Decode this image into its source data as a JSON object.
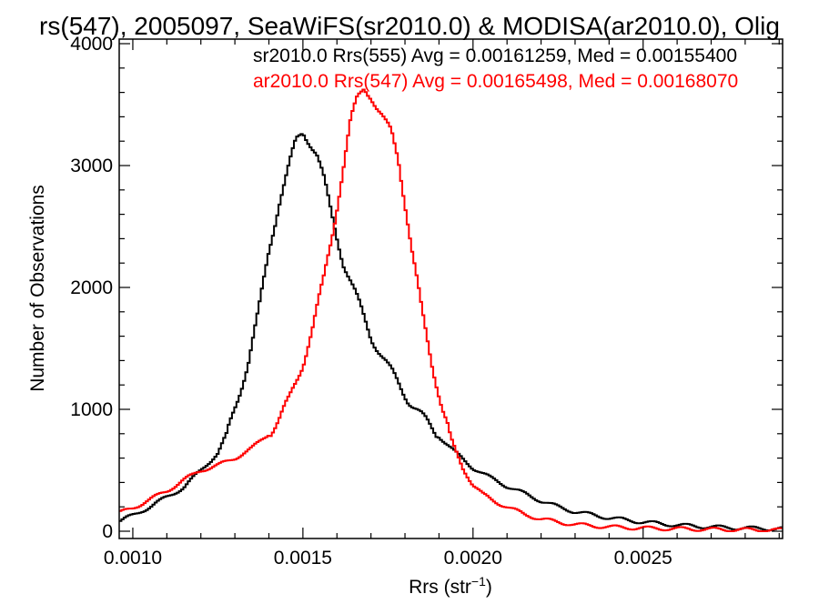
{
  "chart_data": {
    "type": "line",
    "title": "rs(547), 2005097, SeaWiFS(sr2010.0) & MODISA(ar2010.0), Olig",
    "xlabel_main": "Rrs (str",
    "xlabel_exp": "−1",
    "xlabel_close": ")",
    "ylabel": "Number of Observations",
    "xlim": [
      0.00096,
      0.00291
    ],
    "ylim": [
      0,
      4000
    ],
    "x_ticks": [
      {
        "value": 0.001,
        "label": "0.0010"
      },
      {
        "value": 0.0015,
        "label": "0.0015"
      },
      {
        "value": 0.002,
        "label": "0.0020"
      },
      {
        "value": 0.0025,
        "label": "0.0025"
      }
    ],
    "y_ticks": [
      {
        "value": 0,
        "label": "0"
      },
      {
        "value": 1000,
        "label": "1000"
      },
      {
        "value": 2000,
        "label": "2000"
      },
      {
        "value": 3000,
        "label": "3000"
      },
      {
        "value": 4000,
        "label": "4000"
      }
    ],
    "series": [
      {
        "name": "sr2010.0 Rrs(555) Avg = 0.00161259, Med = 0.00155400",
        "color": "#000000",
        "x": [
          0.00096,
          0.001,
          0.00105,
          0.0011,
          0.00115,
          0.0012,
          0.00125,
          0.00128,
          0.00131,
          0.00134,
          0.00137,
          0.0014,
          0.00143,
          0.00146,
          0.00148,
          0.0015,
          0.00152,
          0.00154,
          0.00156,
          0.00158,
          0.0016,
          0.00162,
          0.00164,
          0.00166,
          0.00168,
          0.0017,
          0.00172,
          0.00175,
          0.00178,
          0.00181,
          0.00185,
          0.0019,
          0.00195,
          0.002,
          0.00205,
          0.0021,
          0.00215,
          0.0022,
          0.00225,
          0.0023,
          0.0024,
          0.0025,
          0.0026,
          0.0027,
          0.0028,
          0.00291
        ],
        "y": [
          80,
          130,
          200,
          280,
          360,
          500,
          640,
          820,
          1100,
          1400,
          1800,
          2300,
          2700,
          3000,
          3200,
          3280,
          3200,
          3100,
          2900,
          2650,
          2420,
          2200,
          2050,
          1900,
          1750,
          1600,
          1500,
          1350,
          1220,
          1080,
          940,
          780,
          640,
          520,
          440,
          370,
          310,
          250,
          200,
          160,
          110,
          75,
          50,
          35,
          25,
          20
        ]
      },
      {
        "name": "ar2010.0 Rrs(547) Avg = 0.00165498, Med = 0.00168070",
        "color": "#ff0000",
        "x": [
          0.00096,
          0.001,
          0.00105,
          0.0011,
          0.00115,
          0.0012,
          0.00125,
          0.0013,
          0.00135,
          0.0014,
          0.00143,
          0.00146,
          0.0015,
          0.00153,
          0.00156,
          0.00159,
          0.00162,
          0.00164,
          0.00166,
          0.00168,
          0.0017,
          0.00172,
          0.00174,
          0.00176,
          0.00178,
          0.0018,
          0.00182,
          0.00185,
          0.00188,
          0.00191,
          0.00194,
          0.00197,
          0.002,
          0.00203,
          0.00206,
          0.0021,
          0.00215,
          0.0022,
          0.00225,
          0.0023,
          0.0024,
          0.0025,
          0.0026,
          0.0027,
          0.0028,
          0.00291
        ],
        "y": [
          150,
          190,
          260,
          330,
          420,
          500,
          540,
          600,
          680,
          800,
          920,
          1080,
          1380,
          1680,
          2050,
          2500,
          3000,
          3350,
          3550,
          3650,
          3580,
          3450,
          3350,
          3280,
          3080,
          2700,
          2300,
          1800,
          1380,
          1000,
          720,
          520,
          380,
          300,
          250,
          200,
          140,
          100,
          75,
          55,
          35,
          25,
          20,
          15,
          12,
          10
        ]
      }
    ],
    "legend_placement": "top-right",
    "grid": false
  }
}
